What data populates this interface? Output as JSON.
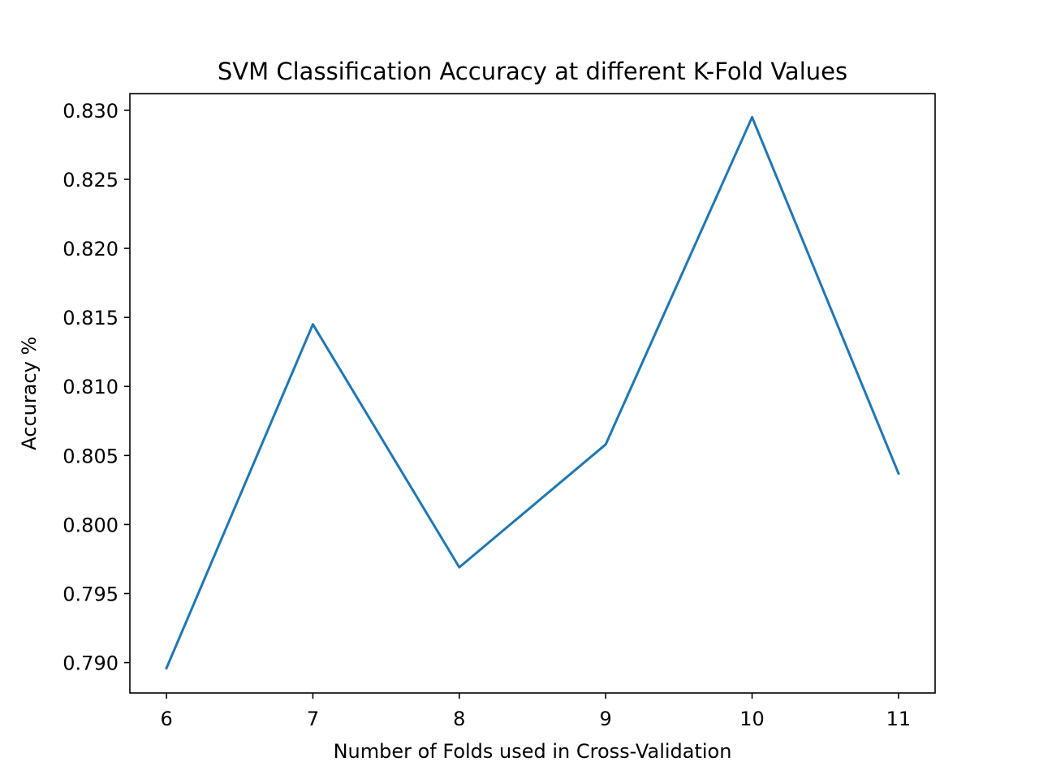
{
  "chart_data": {
    "type": "line",
    "title": "SVM Classification Accuracy at different K-Fold Values",
    "xlabel": "Number of Folds used in Cross-Validation",
    "ylabel": "Accuracy %",
    "x": [
      6,
      7,
      8,
      9,
      10,
      11
    ],
    "series": [
      {
        "values": [
          0.7896,
          0.8145,
          0.7969,
          0.8058,
          0.8295,
          0.8037
        ],
        "color": "#1f77b4"
      }
    ],
    "xticks": [
      "6",
      "7",
      "8",
      "9",
      "10",
      "11"
    ],
    "yticks": [
      "0.790",
      "0.795",
      "0.800",
      "0.805",
      "0.810",
      "0.815",
      "0.820",
      "0.825",
      "0.830"
    ],
    "xlim": [
      5.75,
      11.25
    ],
    "ylim": [
      0.7878,
      0.8312
    ],
    "grid": false,
    "legend": "none"
  }
}
